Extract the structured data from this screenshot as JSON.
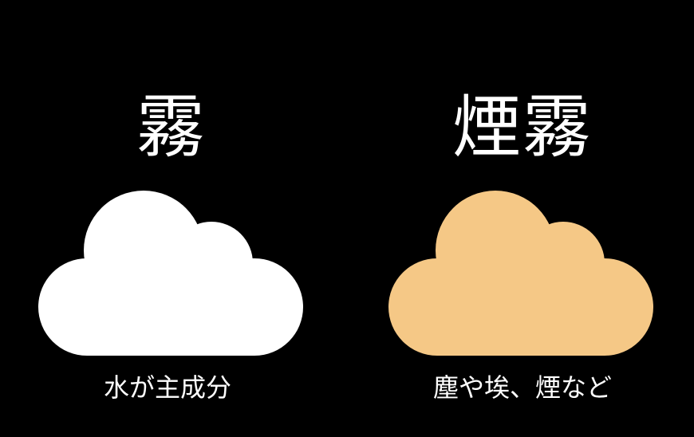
{
  "colors": {
    "background": "#000000",
    "text": "#ffffff",
    "left_cloud": "#ffffff",
    "right_cloud": "#f5c886"
  },
  "left": {
    "title": "霧",
    "caption": "水が主成分",
    "icon": "cloud-icon"
  },
  "right": {
    "title": "煙霧",
    "caption": "塵や埃、煙など",
    "icon": "cloud-icon"
  }
}
